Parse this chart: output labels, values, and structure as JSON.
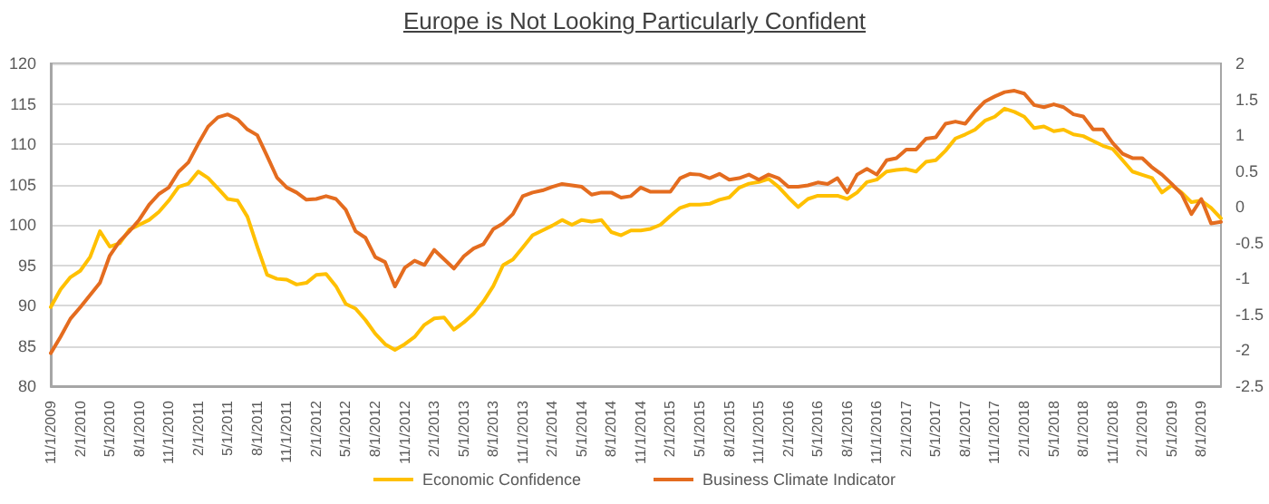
{
  "chart_data": {
    "type": "line",
    "title": "Europe is Not Looking Particularly Confident",
    "categories": [
      "11/1/2009",
      null,
      null,
      "2/1/2010",
      null,
      null,
      "5/1/2010",
      null,
      null,
      "8/1/2010",
      null,
      null,
      "11/1/2010",
      null,
      null,
      "2/1/2011",
      null,
      null,
      "5/1/2011",
      null,
      null,
      "8/1/2011",
      null,
      null,
      "11/1/2011",
      null,
      null,
      "2/1/2012",
      null,
      null,
      "5/1/2012",
      null,
      null,
      "8/1/2012",
      null,
      null,
      "11/1/2012",
      null,
      null,
      "2/1/2013",
      null,
      null,
      "5/1/2013",
      null,
      null,
      "8/1/2013",
      null,
      null,
      "11/1/2013",
      null,
      null,
      "2/1/2014",
      null,
      null,
      "5/1/2014",
      null,
      null,
      "8/1/2014",
      null,
      null,
      "11/1/2014",
      null,
      null,
      "2/1/2015",
      null,
      null,
      "5/1/2015",
      null,
      null,
      "8/1/2015",
      null,
      null,
      "11/1/2015",
      null,
      null,
      "2/1/2016",
      null,
      null,
      "5/1/2016",
      null,
      null,
      "8/1/2016",
      null,
      null,
      "11/1/2016",
      null,
      null,
      "2/1/2017",
      null,
      null,
      "5/1/2017",
      null,
      null,
      "8/1/2017",
      null,
      null,
      "11/1/2017",
      null,
      null,
      "2/1/2018",
      null,
      null,
      "5/1/2018",
      null,
      null,
      "8/1/2018",
      null,
      null,
      "11/1/2018",
      null,
      null,
      "2/1/2019",
      null,
      null,
      "5/1/2019",
      null,
      null,
      "8/1/2019",
      null,
      null
    ],
    "series": [
      {
        "name": "Economic Confidence",
        "color": "#ffc000",
        "values": [
          89.8,
          92,
          93.5,
          94.3,
          96,
          99.2,
          97.3,
          97.7,
          99.4,
          100,
          100.6,
          101.6,
          103,
          104.7,
          105.1,
          106.6,
          105.8,
          104.5,
          103.2,
          103,
          101,
          97.3,
          93.8,
          93.3,
          93.2,
          92.6,
          92.8,
          93.8,
          93.9,
          92.4,
          90.2,
          89.6,
          88.2,
          86.5,
          85.2,
          84.5,
          85.2,
          86.1,
          87.6,
          88.4,
          88.5,
          87,
          87.9,
          89,
          90.5,
          92.4,
          95,
          95.7,
          97.2,
          98.7,
          99.3,
          99.9,
          100.6,
          100,
          100.6,
          100.4,
          100.6,
          99.1,
          98.7,
          99.3,
          99.3,
          99.5,
          100,
          101.1,
          102.1,
          102.5,
          102.5,
          102.6,
          103.1,
          103.4,
          104.6,
          105.1,
          105.3,
          105.7,
          104.7,
          103.4,
          102.2,
          103.2,
          103.6,
          103.6,
          103.6,
          103.2,
          104,
          105.3,
          105.6,
          106.6,
          106.8,
          106.9,
          106.6,
          107.8,
          108,
          109.2,
          110.7,
          111.2,
          111.8,
          112.9,
          113.4,
          114.4,
          114,
          113.4,
          112,
          112.2,
          111.6,
          111.8,
          111.2,
          111,
          110.4,
          109.8,
          109.4,
          108,
          106.6,
          106.2,
          105.8,
          104,
          104.9,
          104,
          102.8,
          103,
          102.1,
          100.8
        ]
      },
      {
        "name": "Business Climate Indicator",
        "color": "#e46c1f",
        "axis": "y2",
        "values": [
          -2.04,
          -1.81,
          -1.56,
          -1.4,
          -1.23,
          -1.06,
          -0.68,
          -0.48,
          -0.34,
          -0.18,
          0.03,
          0.18,
          0.27,
          0.49,
          0.62,
          0.88,
          1.12,
          1.25,
          1.29,
          1.22,
          1.08,
          1.0,
          0.71,
          0.41,
          0.27,
          0.2,
          0.1,
          0.11,
          0.15,
          0.11,
          -0.04,
          -0.34,
          -0.43,
          -0.7,
          -0.77,
          -1.11,
          -0.85,
          -0.75,
          -0.81,
          -0.6,
          -0.73,
          -0.86,
          -0.69,
          -0.58,
          -0.52,
          -0.31,
          -0.23,
          -0.1,
          0.15,
          0.2,
          0.23,
          0.28,
          0.32,
          0.3,
          0.28,
          0.17,
          0.2,
          0.2,
          0.13,
          0.15,
          0.27,
          0.21,
          0.21,
          0.21,
          0.4,
          0.46,
          0.45,
          0.4,
          0.46,
          0.38,
          0.4,
          0.45,
          0.38,
          0.45,
          0.4,
          0.28,
          0.28,
          0.3,
          0.34,
          0.32,
          0.4,
          0.2,
          0.45,
          0.53,
          0.45,
          0.65,
          0.68,
          0.8,
          0.8,
          0.95,
          0.97,
          1.16,
          1.19,
          1.16,
          1.33,
          1.47,
          1.54,
          1.6,
          1.62,
          1.58,
          1.42,
          1.39,
          1.43,
          1.39,
          1.29,
          1.26,
          1.08,
          1.08,
          0.89,
          0.74,
          0.68,
          0.68,
          0.55,
          0.45,
          0.32,
          0.18,
          -0.1,
          0.11,
          -0.23,
          -0.21
        ]
      }
    ],
    "ylim": [
      80,
      120
    ],
    "yticks": [
      80,
      85,
      90,
      95,
      100,
      105,
      110,
      115,
      120
    ],
    "y2lim": [
      -2.5,
      2
    ],
    "y2ticks": [
      -2.5,
      -2,
      -1.5,
      -1,
      -0.5,
      0,
      0.5,
      1,
      1.5,
      2
    ],
    "grid": "y",
    "legend": "bottom",
    "marker": "none",
    "line_style": "solid"
  }
}
